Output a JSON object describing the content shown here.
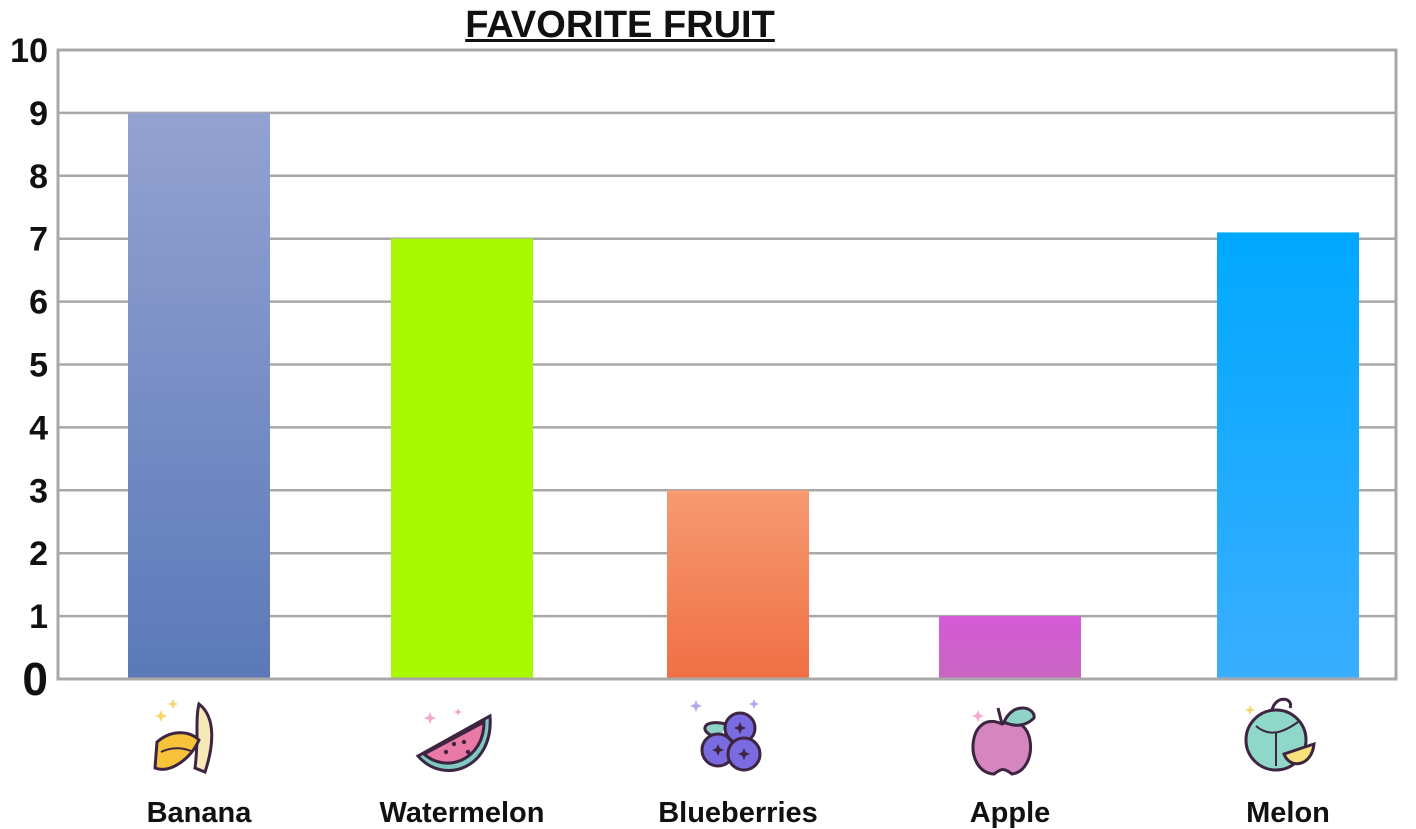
{
  "chart_data": {
    "type": "bar",
    "title": "FAVORITE FRUIT",
    "categories": [
      "Banana",
      "Watermelon",
      "Blueberries",
      "Apple",
      "Melon"
    ],
    "values": [
      9,
      7,
      3,
      1,
      7.1
    ],
    "icons": [
      "banana-icon",
      "watermelon-icon",
      "blueberries-icon",
      "apple-icon",
      "melon-icon"
    ],
    "bar_colors": [
      [
        "#93a2d1",
        "#5b79b8"
      ],
      [
        "#a8f800",
        "#a8f800"
      ],
      [
        "#f69a70",
        "#f06f44"
      ],
      [
        "#d45ad8",
        "#c966c1"
      ],
      [
        "#00a8ff",
        "#3aaeff"
      ]
    ],
    "ylim": [
      0,
      10
    ],
    "yticks": [
      "0",
      "1",
      "2",
      "3",
      "4",
      "5",
      "6",
      "7",
      "8",
      "9",
      "10"
    ],
    "grid": true,
    "xlabel": "",
    "ylabel": ""
  }
}
